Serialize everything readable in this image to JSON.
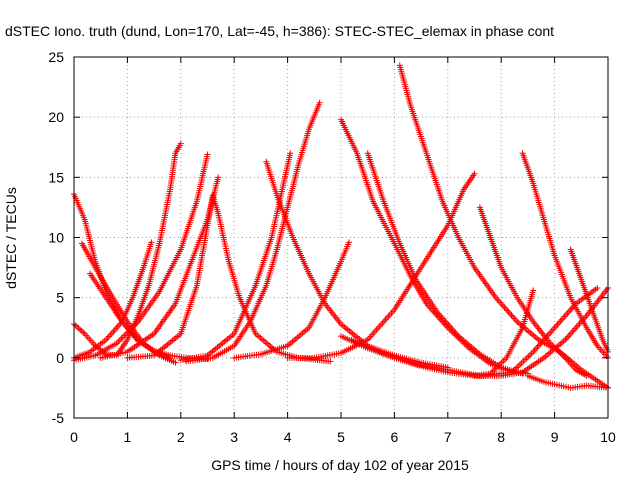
{
  "chart_data": {
    "type": "scatter",
    "title": "dSTEC Iono. truth (dund, Lon=170, Lat=-45, h=386): STEC-STEC_elemax in phase cont",
    "xlabel": "GPS time / hours of day 102 of year 2015",
    "ylabel": "dSTEC  / TECUs",
    "xlim": [
      0,
      10
    ],
    "ylim": [
      -5,
      25
    ],
    "x_ticks": [
      "0",
      "1",
      "2",
      "3",
      "4",
      "5",
      "6",
      "7",
      "8",
      "9",
      "10"
    ],
    "y_ticks": [
      "-5",
      "0",
      "5",
      "10",
      "15",
      "20",
      "25"
    ],
    "grid": true,
    "marker": "+",
    "color": "#ff0000",
    "series": [
      {
        "points": [
          [
            0.0,
            13.6
          ],
          [
            0.2,
            11.5
          ],
          [
            0.4,
            8.0
          ],
          [
            0.6,
            5.5
          ],
          [
            0.9,
            3.0
          ],
          [
            1.2,
            1.4
          ],
          [
            1.5,
            0.6
          ],
          [
            1.8,
            0.2
          ],
          [
            2.1,
            0.0
          ],
          [
            2.5,
            -0.1
          ]
        ]
      },
      {
        "points": [
          [
            0.0,
            2.8
          ],
          [
            0.2,
            2.0
          ],
          [
            0.4,
            1.0
          ],
          [
            0.6,
            0.3
          ],
          [
            0.8,
            0.2
          ],
          [
            1.0,
            1.5
          ],
          [
            1.2,
            3.5
          ],
          [
            1.4,
            6.0
          ],
          [
            1.6,
            9.5
          ],
          [
            1.8,
            14.0
          ],
          [
            1.9,
            17.0
          ],
          [
            2.0,
            17.8
          ]
        ]
      },
      {
        "points": [
          [
            0.15,
            9.5
          ],
          [
            0.4,
            7.5
          ],
          [
            0.7,
            5.2
          ],
          [
            1.0,
            3.0
          ],
          [
            1.3,
            1.2
          ],
          [
            1.6,
            0.2
          ],
          [
            1.9,
            -0.4
          ]
        ]
      },
      {
        "points": [
          [
            0.3,
            7.0
          ],
          [
            0.6,
            5.0
          ],
          [
            0.9,
            3.0
          ],
          [
            1.2,
            1.5
          ],
          [
            1.5,
            0.5
          ],
          [
            1.8,
            0.0
          ]
        ]
      },
      {
        "points": [
          [
            0.0,
            0.0
          ],
          [
            0.3,
            0.5
          ],
          [
            0.6,
            1.5
          ],
          [
            0.9,
            3.0
          ],
          [
            1.1,
            5.0
          ],
          [
            1.3,
            7.5
          ],
          [
            1.45,
            9.6
          ]
        ]
      },
      {
        "points": [
          [
            0.0,
            -0.2
          ],
          [
            0.4,
            0.2
          ],
          [
            0.8,
            1.2
          ],
          [
            1.2,
            3.0
          ],
          [
            1.6,
            5.5
          ],
          [
            2.0,
            9.0
          ],
          [
            2.3,
            13.0
          ],
          [
            2.5,
            16.9
          ]
        ]
      },
      {
        "points": [
          [
            0.5,
            0.0
          ],
          [
            1.0,
            0.5
          ],
          [
            1.5,
            2.0
          ],
          [
            1.9,
            4.5
          ],
          [
            2.2,
            8.0
          ],
          [
            2.5,
            11.5
          ],
          [
            2.7,
            15.0
          ]
        ]
      },
      {
        "points": [
          [
            1.0,
            0.0
          ],
          [
            1.5,
            0.2
          ],
          [
            2.0,
            2.0
          ],
          [
            2.3,
            6.0
          ],
          [
            2.5,
            11.0
          ],
          [
            2.6,
            13.5
          ],
          [
            2.7,
            12.0
          ],
          [
            2.9,
            8.0
          ],
          [
            3.1,
            5.0
          ],
          [
            3.4,
            2.0
          ],
          [
            3.8,
            0.5
          ],
          [
            4.2,
            0.0
          ],
          [
            4.8,
            -0.3
          ]
        ]
      },
      {
        "points": [
          [
            2.1,
            -0.3
          ],
          [
            2.6,
            0.0
          ],
          [
            3.0,
            1.0
          ],
          [
            3.3,
            3.0
          ],
          [
            3.6,
            6.0
          ],
          [
            3.8,
            9.0
          ],
          [
            4.0,
            12.5
          ],
          [
            4.2,
            16.0
          ],
          [
            4.4,
            19.0
          ],
          [
            4.6,
            21.2
          ]
        ]
      },
      {
        "points": [
          [
            2.0,
            -0.2
          ],
          [
            2.5,
            0.2
          ],
          [
            3.0,
            2.0
          ],
          [
            3.4,
            6.0
          ],
          [
            3.7,
            10.0
          ],
          [
            3.9,
            14.0
          ],
          [
            4.05,
            17.0
          ]
        ]
      },
      {
        "points": [
          [
            3.6,
            16.3
          ],
          [
            3.8,
            13.5
          ],
          [
            4.1,
            10.0
          ],
          [
            4.4,
            7.0
          ],
          [
            4.7,
            4.5
          ],
          [
            5.0,
            2.8
          ],
          [
            5.5,
            1.0
          ],
          [
            6.0,
            0.2
          ],
          [
            6.5,
            -0.4
          ],
          [
            7.0,
            -0.8
          ]
        ]
      },
      {
        "points": [
          [
            3.0,
            0.0
          ],
          [
            3.5,
            0.3
          ],
          [
            4.0,
            1.0
          ],
          [
            4.4,
            2.5
          ],
          [
            4.7,
            5.0
          ],
          [
            5.0,
            8.0
          ],
          [
            5.15,
            9.6
          ]
        ]
      },
      {
        "points": [
          [
            4.0,
            0.0
          ],
          [
            4.5,
            0.0
          ],
          [
            5.0,
            0.4
          ],
          [
            5.5,
            1.5
          ],
          [
            6.0,
            4.0
          ],
          [
            6.5,
            7.5
          ],
          [
            7.0,
            11.0
          ],
          [
            7.3,
            14.0
          ],
          [
            7.5,
            15.3
          ]
        ]
      },
      {
        "points": [
          [
            5.0,
            19.8
          ],
          [
            5.3,
            17.0
          ],
          [
            5.6,
            13.0
          ],
          [
            6.0,
            9.5
          ],
          [
            6.3,
            6.8
          ],
          [
            6.6,
            4.5
          ],
          [
            7.0,
            2.5
          ],
          [
            7.4,
            0.8
          ],
          [
            7.8,
            -0.5
          ],
          [
            8.2,
            -1.2
          ],
          [
            8.5,
            -1.3
          ]
        ]
      },
      {
        "points": [
          [
            5.5,
            17.0
          ],
          [
            5.8,
            13.0
          ],
          [
            6.1,
            9.5
          ],
          [
            6.4,
            6.5
          ],
          [
            6.8,
            3.8
          ],
          [
            7.2,
            1.8
          ],
          [
            7.6,
            0.3
          ],
          [
            8.0,
            -0.8
          ],
          [
            8.4,
            -1.3
          ]
        ]
      },
      {
        "points": [
          [
            6.1,
            24.3
          ],
          [
            6.3,
            21.0
          ],
          [
            6.6,
            17.0
          ],
          [
            6.9,
            13.0
          ],
          [
            7.2,
            10.0
          ],
          [
            7.5,
            7.5
          ],
          [
            7.9,
            5.0
          ],
          [
            8.3,
            3.0
          ],
          [
            8.7,
            1.5
          ],
          [
            9.1,
            0.5
          ],
          [
            9.5,
            -1.0
          ],
          [
            10.0,
            -2.5
          ]
        ]
      },
      {
        "points": [
          [
            5.0,
            1.8
          ],
          [
            5.5,
            0.8
          ],
          [
            6.0,
            0.0
          ],
          [
            6.5,
            -0.7
          ],
          [
            7.0,
            -1.2
          ],
          [
            7.5,
            -1.5
          ],
          [
            8.0,
            -1.5
          ],
          [
            8.4,
            -1.2
          ],
          [
            8.8,
            0.0
          ],
          [
            9.2,
            1.5
          ],
          [
            9.6,
            3.5
          ],
          [
            10.0,
            5.8
          ]
        ]
      },
      {
        "points": [
          [
            5.2,
            1.5
          ],
          [
            5.8,
            0.3
          ],
          [
            6.4,
            -0.5
          ],
          [
            7.0,
            -1.0
          ],
          [
            7.6,
            -1.5
          ],
          [
            8.2,
            -1.2
          ],
          [
            8.6,
            0.5
          ],
          [
            9.0,
            2.5
          ],
          [
            9.4,
            4.5
          ],
          [
            9.8,
            5.8
          ]
        ]
      },
      {
        "points": [
          [
            7.5,
            -1.5
          ],
          [
            7.8,
            -1.3
          ],
          [
            8.1,
            0.0
          ],
          [
            8.4,
            2.5
          ],
          [
            8.6,
            5.6
          ]
        ]
      },
      {
        "points": [
          [
            7.6,
            12.5
          ],
          [
            7.8,
            10.0
          ],
          [
            8.0,
            7.5
          ],
          [
            8.3,
            5.0
          ],
          [
            8.6,
            3.0
          ],
          [
            8.9,
            1.3
          ],
          [
            9.2,
            0.0
          ],
          [
            9.4,
            -1.0
          ],
          [
            9.6,
            -1.5
          ]
        ]
      },
      {
        "points": [
          [
            8.4,
            17.0
          ],
          [
            8.6,
            14.5
          ],
          [
            8.8,
            11.5
          ],
          [
            9.0,
            8.5
          ],
          [
            9.3,
            5.0
          ],
          [
            9.6,
            2.5
          ],
          [
            9.8,
            1.0
          ],
          [
            10.0,
            0.0
          ]
        ]
      },
      {
        "points": [
          [
            9.3,
            9.0
          ],
          [
            9.5,
            6.5
          ],
          [
            9.7,
            4.0
          ],
          [
            9.9,
            1.5
          ],
          [
            10.0,
            0.5
          ]
        ]
      },
      {
        "points": [
          [
            8.5,
            -1.5
          ],
          [
            8.8,
            -2.0
          ],
          [
            9.0,
            -2.2
          ],
          [
            9.3,
            -2.5
          ],
          [
            9.6,
            -2.3
          ],
          [
            10.0,
            -2.5
          ]
        ]
      }
    ]
  }
}
